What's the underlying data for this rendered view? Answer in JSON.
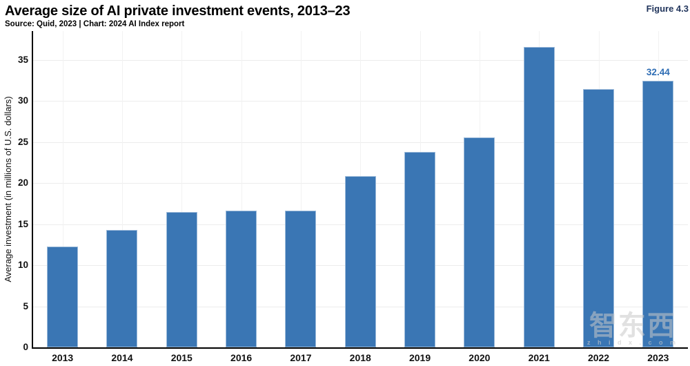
{
  "header": {
    "title": "Average size of AI private investment events, 2013–23",
    "subtitle": "Source: Quid, 2023 | Chart: 2024 AI Index report",
    "figure_label": "Figure 4.3"
  },
  "watermark": {
    "logo": "智东西",
    "domain": "z h i d x . c o m"
  },
  "colors": {
    "bar": "#3A76B4",
    "value_label": "#2E6DB4",
    "figure_label": "#21355C",
    "axis": "#000000",
    "gridline_h": "#ececec",
    "gridline_v": "#f2f2f2"
  },
  "chart_data": {
    "type": "bar",
    "title": "Average size of AI private investment events, 2013–23",
    "xlabel": "",
    "ylabel": "Average investment (in millions of U.S. dollars)",
    "categories": [
      "2013",
      "2014",
      "2015",
      "2016",
      "2017",
      "2018",
      "2019",
      "2020",
      "2021",
      "2022",
      "2023"
    ],
    "values": [
      12.3,
      14.3,
      16.5,
      16.7,
      16.7,
      20.9,
      23.8,
      25.6,
      36.6,
      31.5,
      32.44
    ],
    "yticks": [
      0,
      5,
      10,
      15,
      20,
      25,
      30,
      35
    ],
    "ylim": [
      0,
      38.5
    ],
    "grid": true,
    "legend": "none",
    "value_labels": [
      {
        "category": "2023",
        "text": "32.44"
      }
    ]
  }
}
